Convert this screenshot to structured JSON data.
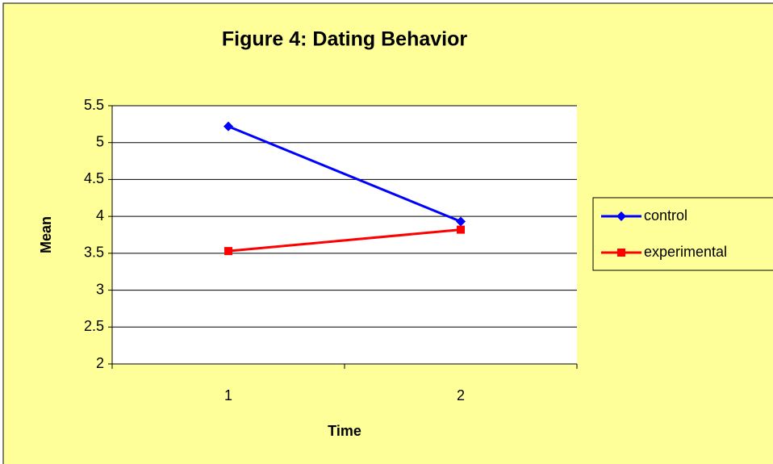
{
  "chart_data": {
    "type": "line",
    "title": "Figure 4: Dating Behavior",
    "x_label": "Time",
    "y_label": "Mean",
    "categories": [
      "1",
      "2"
    ],
    "series": [
      {
        "name": "control",
        "color": "#0000ff",
        "marker": "diamond",
        "values": [
          5.22,
          3.93
        ]
      },
      {
        "name": "experimental",
        "color": "#ff0000",
        "marker": "square",
        "values": [
          3.53,
          3.82
        ]
      }
    ],
    "ylim": [
      2,
      5.5
    ],
    "yticks": [
      2,
      2.5,
      3,
      3.5,
      4,
      4.5,
      5,
      5.5
    ],
    "grid": true,
    "legend": "right"
  }
}
